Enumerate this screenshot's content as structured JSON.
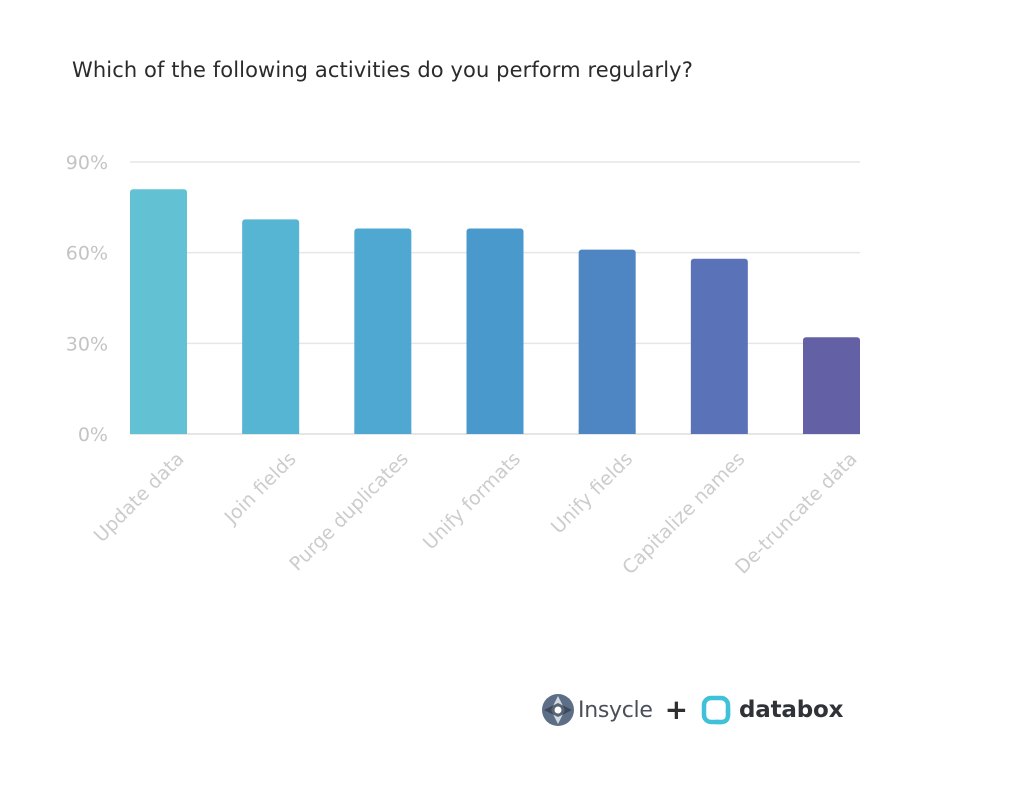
{
  "chart_data": {
    "type": "bar",
    "title": "Which of the following activities do you perform regularly?",
    "xlabel": "",
    "ylabel": "",
    "categories": [
      "Update data",
      "Join fields",
      "Purge duplicates",
      "Unify formats",
      "Unify fields",
      "Capitalize names",
      "De-truncate data"
    ],
    "values": [
      81,
      71,
      68,
      68,
      61,
      58,
      32
    ],
    "ylim": [
      0,
      90
    ],
    "yticks": [
      0,
      30,
      60,
      90
    ],
    "ytick_labels": [
      "0%",
      "30%",
      "60%",
      "90%"
    ],
    "grid": true,
    "legend": "none",
    "bar_colors": [
      "#62c2d3",
      "#56b5d3",
      "#4ea8d2",
      "#4a99cc",
      "#4d86c2",
      "#5a73b8",
      "#6460a6"
    ]
  },
  "footer": {
    "brand_left": "Insycle",
    "plus": "+",
    "brand_right": "databox",
    "left_logo_icon": "insycle-logo-icon",
    "right_logo_icon": "databox-logo-icon",
    "databox_color": "#3fc1d9"
  }
}
